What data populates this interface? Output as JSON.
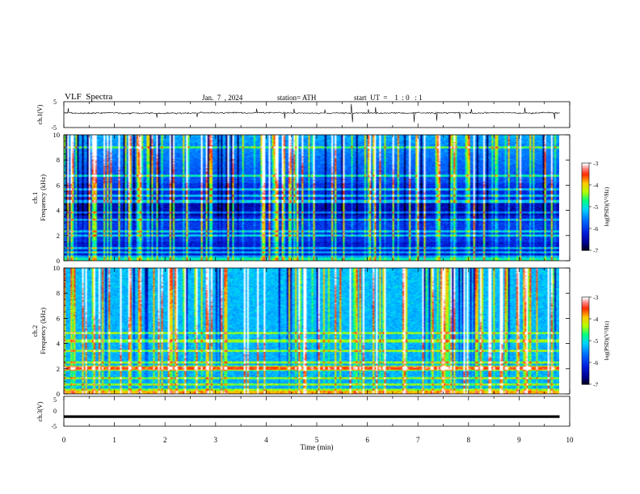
{
  "header": {
    "title": "VLF  Spectra",
    "date": "Jan.  7  , 2024",
    "station": "station= ATH",
    "start_ut": "start  UT  =    1  : 0   : 1"
  },
  "chart_data": [
    {
      "type": "line",
      "panel": "ch1-waveform",
      "ylabel": "ch.1(V)",
      "ylim": [
        -5,
        5
      ],
      "yticks": [
        "5",
        "-5"
      ],
      "xlim": [
        0,
        10
      ],
      "description": "noisy waveform centred slightly above 0 V with occasional spikes"
    },
    {
      "type": "heatmap",
      "panel": "ch1-spectrogram",
      "ylabel": "ch.1\nFrequency  (kHz)",
      "ylabel_line1": "ch.1",
      "ylabel_line2": "Frequency  (kHz)",
      "ylim": [
        0,
        10
      ],
      "yticks": [
        "0",
        "2",
        "4",
        "6",
        "8",
        "10"
      ],
      "xlim": [
        0,
        9.8
      ],
      "colorbar": {
        "label": "log(PSD)(V²/Hz)",
        "range": [
          -7,
          -3
        ],
        "ticks": [
          "-3",
          "-4",
          "-5",
          "-6",
          "-7"
        ]
      },
      "features": {
        "bands_khz": [
          0.3,
          0.6,
          1.0,
          2.0,
          2.3,
          3.2,
          3.8,
          4.7,
          5.2,
          5.7,
          6.8,
          9.0
        ],
        "quiet_band_khz": [
          3.6,
          4.6
        ]
      }
    },
    {
      "type": "heatmap",
      "panel": "ch2-spectrogram",
      "ylabel": "ch.2\nFrequency  (kHz)",
      "ylabel_line1": "ch.2",
      "ylabel_line2": "Frequency  (kHz)",
      "ylim": [
        0,
        10
      ],
      "yticks": [
        "0",
        "2",
        "4",
        "6",
        "8",
        "10"
      ],
      "xlim": [
        0,
        9.8
      ],
      "colorbar": {
        "label": "log(PSD)(V²/Hz)",
        "range": [
          -7,
          -3
        ],
        "ticks": [
          "-3",
          "-4",
          "-5",
          "-6",
          "-7"
        ]
      },
      "features": {
        "bands_khz": [
          0.3,
          0.7,
          1.2,
          1.9,
          2.1,
          2.5,
          3.4,
          4.2,
          4.8
        ],
        "strong_band_khz": 2.0
      }
    },
    {
      "type": "line",
      "panel": "ch3-waveform",
      "ylabel": "ch.3(V)",
      "ylim": [
        -5,
        5
      ],
      "yticks": [
        "5",
        "0",
        "-5"
      ],
      "xlim": [
        0,
        10
      ],
      "description": "flat thick trace near -1.8 V"
    }
  ],
  "xaxis": {
    "label": "Time  (min)",
    "ticks": [
      "0",
      "1",
      "2",
      "3",
      "4",
      "5",
      "6",
      "7",
      "8",
      "9",
      "10"
    ],
    "range": [
      0,
      10
    ]
  },
  "colors": {
    "background": "#ffffff",
    "axes": "#000000",
    "colormap": [
      "#000000",
      "#0000c8",
      "#0050ff",
      "#00c8ff",
      "#00ff64",
      "#c8ff00",
      "#ffc800",
      "#ff3200",
      "#ff8888",
      "#ffffff"
    ]
  }
}
